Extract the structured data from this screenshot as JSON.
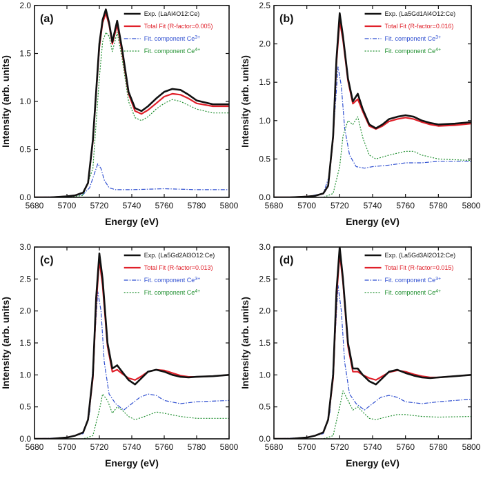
{
  "colors": {
    "experiment": "#111111",
    "total_fit": "#e0202a",
    "ce3": "#2f4fd0",
    "ce4": "#1f8f2f"
  },
  "chart_data": [
    {
      "type": "line",
      "panel_label": "(a)",
      "xlabel": "Energy (eV)",
      "ylabel": "Intensity (arb. units)",
      "xlim": [
        5680,
        5800
      ],
      "ylim": [
        0.0,
        2.0
      ],
      "xticks": [
        5680,
        5700,
        5720,
        5740,
        5760,
        5780,
        5800
      ],
      "yticks": [
        0.0,
        0.5,
        1.0,
        1.5,
        2.0
      ],
      "legend": [
        "Exp. (LaAl4O12:Ce)",
        "Total Fit (R-factor=0.005)",
        "Fit. component Ce3+",
        "Fit. component Ce4+"
      ],
      "series": [
        {
          "name": "Exp.",
          "style": "exp",
          "x": [
            5680,
            5690,
            5700,
            5705,
            5710,
            5713,
            5716,
            5718,
            5720,
            5722,
            5724,
            5726,
            5728,
            5731,
            5734,
            5738,
            5742,
            5746,
            5750,
            5755,
            5760,
            5765,
            5770,
            5775,
            5780,
            5790,
            5800
          ],
          "y": [
            0,
            0,
            0.01,
            0.02,
            0.05,
            0.15,
            0.6,
            1.1,
            1.6,
            1.85,
            1.96,
            1.82,
            1.62,
            1.84,
            1.55,
            1.1,
            0.93,
            0.9,
            0.95,
            1.03,
            1.1,
            1.13,
            1.12,
            1.07,
            1.01,
            0.97,
            0.97
          ]
        },
        {
          "name": "Total Fit",
          "style": "fit",
          "x": [
            5680,
            5690,
            5700,
            5705,
            5710,
            5713,
            5716,
            5718,
            5720,
            5722,
            5724,
            5726,
            5728,
            5731,
            5734,
            5738,
            5742,
            5746,
            5750,
            5755,
            5760,
            5765,
            5770,
            5775,
            5780,
            5790,
            5800
          ],
          "y": [
            0,
            0,
            0.01,
            0.02,
            0.05,
            0.15,
            0.58,
            1.08,
            1.57,
            1.82,
            1.92,
            1.8,
            1.6,
            1.8,
            1.52,
            1.08,
            0.9,
            0.87,
            0.91,
            0.98,
            1.05,
            1.08,
            1.07,
            1.03,
            0.98,
            0.95,
            0.95
          ]
        },
        {
          "name": "Ce3+",
          "style": "ce3",
          "x": [
            5680,
            5700,
            5710,
            5714,
            5717,
            5719,
            5721,
            5723,
            5726,
            5730,
            5740,
            5760,
            5780,
            5800
          ],
          "y": [
            0,
            0.01,
            0.03,
            0.1,
            0.25,
            0.35,
            0.3,
            0.18,
            0.1,
            0.08,
            0.08,
            0.09,
            0.08,
            0.08
          ]
        },
        {
          "name": "Ce4+",
          "style": "ce4",
          "x": [
            5680,
            5700,
            5710,
            5716,
            5720,
            5722,
            5724,
            5726,
            5728,
            5731,
            5734,
            5738,
            5742,
            5746,
            5750,
            5755,
            5760,
            5765,
            5770,
            5775,
            5780,
            5790,
            5800
          ],
          "y": [
            0,
            0,
            0.02,
            0.3,
            1.25,
            1.62,
            1.72,
            1.68,
            1.52,
            1.72,
            1.45,
            1.0,
            0.83,
            0.8,
            0.84,
            0.92,
            0.98,
            1.02,
            1.0,
            0.96,
            0.92,
            0.88,
            0.88
          ]
        }
      ]
    },
    {
      "type": "line",
      "panel_label": "(b)",
      "xlabel": "Energy (eV)",
      "ylabel": "Intensity (arb. units)",
      "xlim": [
        5680,
        5800
      ],
      "ylim": [
        0.0,
        2.5
      ],
      "xticks": [
        5680,
        5700,
        5720,
        5740,
        5760,
        5780,
        5800
      ],
      "yticks": [
        0.0,
        0.5,
        1.0,
        1.5,
        2.0,
        2.5
      ],
      "legend": [
        "Exp. (La5Gd1Al4O12:Ce)",
        "Total Fit (R-factor=0.016)",
        "Fit. component Ce3+",
        "Fit. component Ce4+"
      ],
      "series": [
        {
          "name": "Exp.",
          "style": "exp",
          "x": [
            5680,
            5690,
            5700,
            5705,
            5710,
            5713,
            5716,
            5718,
            5720,
            5722,
            5725,
            5728,
            5731,
            5734,
            5738,
            5742,
            5746,
            5750,
            5755,
            5760,
            5765,
            5770,
            5775,
            5780,
            5790,
            5800
          ],
          "y": [
            0,
            0,
            0.01,
            0.02,
            0.05,
            0.15,
            0.8,
            1.8,
            2.4,
            2.1,
            1.55,
            1.25,
            1.35,
            1.15,
            0.95,
            0.9,
            0.95,
            1.02,
            1.05,
            1.07,
            1.05,
            1.0,
            0.97,
            0.95,
            0.96,
            0.98
          ]
        },
        {
          "name": "Total Fit",
          "style": "fit",
          "x": [
            5680,
            5690,
            5700,
            5705,
            5710,
            5713,
            5716,
            5718,
            5720,
            5722,
            5725,
            5728,
            5731,
            5734,
            5738,
            5742,
            5746,
            5750,
            5755,
            5760,
            5765,
            5770,
            5775,
            5780,
            5790,
            5800
          ],
          "y": [
            0,
            0,
            0.01,
            0.02,
            0.05,
            0.15,
            0.78,
            1.75,
            2.3,
            2.05,
            1.52,
            1.22,
            1.28,
            1.12,
            0.93,
            0.89,
            0.93,
            0.99,
            1.02,
            1.04,
            1.02,
            0.98,
            0.95,
            0.93,
            0.94,
            0.96
          ]
        },
        {
          "name": "Ce3+",
          "style": "ce3",
          "x": [
            5680,
            5700,
            5710,
            5714,
            5717,
            5719,
            5721,
            5723,
            5726,
            5730,
            5735,
            5740,
            5750,
            5760,
            5770,
            5780,
            5800
          ],
          "y": [
            0,
            0.01,
            0.05,
            0.3,
            1.1,
            1.7,
            1.45,
            0.9,
            0.55,
            0.4,
            0.38,
            0.4,
            0.42,
            0.45,
            0.45,
            0.47,
            0.47
          ]
        },
        {
          "name": "Ce4+",
          "style": "ce4",
          "x": [
            5680,
            5710,
            5716,
            5720,
            5722,
            5725,
            5728,
            5731,
            5734,
            5738,
            5742,
            5750,
            5760,
            5765,
            5770,
            5780,
            5800
          ],
          "y": [
            0,
            0,
            0.05,
            0.4,
            0.8,
            1.0,
            0.95,
            1.05,
            0.78,
            0.55,
            0.5,
            0.55,
            0.6,
            0.6,
            0.55,
            0.5,
            0.48
          ]
        }
      ]
    },
    {
      "type": "line",
      "panel_label": "(c)",
      "xlabel": "Energy (eV)",
      "ylabel": "Intensity (arb. units)",
      "xlim": [
        5680,
        5800
      ],
      "ylim": [
        0.0,
        3.0
      ],
      "xticks": [
        5680,
        5700,
        5720,
        5740,
        5760,
        5780,
        5800
      ],
      "yticks": [
        0.0,
        0.5,
        1.0,
        1.5,
        2.0,
        2.5,
        3.0
      ],
      "legend": [
        "Exp. (La5Gd2Al3O12:Ce)",
        "Total Fit (R-factor=0.013)",
        "Fit. component Ce3+",
        "Fit. component Ce4+"
      ],
      "series": [
        {
          "name": "Exp.",
          "style": "exp",
          "x": [
            5680,
            5690,
            5700,
            5705,
            5710,
            5713,
            5716,
            5718,
            5720,
            5722,
            5725,
            5728,
            5731,
            5734,
            5738,
            5742,
            5746,
            5750,
            5755,
            5760,
            5765,
            5770,
            5775,
            5780,
            5790,
            5800
          ],
          "y": [
            0,
            0,
            0.02,
            0.05,
            0.1,
            0.3,
            1.0,
            2.2,
            2.9,
            2.5,
            1.5,
            1.1,
            1.15,
            1.05,
            0.92,
            0.85,
            0.95,
            1.05,
            1.08,
            1.05,
            1.0,
            0.97,
            0.96,
            0.97,
            0.98,
            1.0
          ]
        },
        {
          "name": "Total Fit",
          "style": "fit",
          "x": [
            5680,
            5690,
            5700,
            5705,
            5710,
            5713,
            5716,
            5718,
            5720,
            5722,
            5725,
            5728,
            5731,
            5734,
            5738,
            5742,
            5746,
            5750,
            5755,
            5760,
            5765,
            5770,
            5775,
            5780,
            5790,
            5800
          ],
          "y": [
            0,
            0,
            0.02,
            0.05,
            0.1,
            0.3,
            0.95,
            2.1,
            2.8,
            2.4,
            1.45,
            1.05,
            1.08,
            1.02,
            0.95,
            0.92,
            0.98,
            1.05,
            1.08,
            1.07,
            1.03,
            0.99,
            0.97,
            0.97,
            0.98,
            1.0
          ]
        },
        {
          "name": "Ce3+",
          "style": "ce3",
          "x": [
            5680,
            5700,
            5710,
            5714,
            5717,
            5719,
            5721,
            5723,
            5726,
            5730,
            5735,
            5740,
            5745,
            5750,
            5755,
            5760,
            5770,
            5780,
            5800
          ],
          "y": [
            0,
            0.02,
            0.08,
            0.4,
            1.5,
            2.3,
            2.0,
            1.2,
            0.7,
            0.55,
            0.45,
            0.55,
            0.65,
            0.7,
            0.68,
            0.6,
            0.55,
            0.58,
            0.6
          ]
        },
        {
          "name": "Ce4+",
          "style": "ce4",
          "x": [
            5680,
            5710,
            5716,
            5720,
            5722,
            5725,
            5728,
            5731,
            5734,
            5738,
            5742,
            5748,
            5755,
            5760,
            5770,
            5780,
            5800
          ],
          "y": [
            0,
            0,
            0.05,
            0.45,
            0.7,
            0.6,
            0.4,
            0.5,
            0.45,
            0.35,
            0.3,
            0.35,
            0.42,
            0.4,
            0.35,
            0.32,
            0.32
          ]
        }
      ]
    },
    {
      "type": "line",
      "panel_label": "(d)",
      "xlabel": "Energy (eV)",
      "ylabel": "Intensity (arb. units)",
      "xlim": [
        5680,
        5800
      ],
      "ylim": [
        0.0,
        3.0
      ],
      "xticks": [
        5680,
        5700,
        5720,
        5740,
        5760,
        5780,
        5800
      ],
      "yticks": [
        0.0,
        0.5,
        1.0,
        1.5,
        2.0,
        2.5,
        3.0
      ],
      "legend": [
        "Exp. (La5Gd3Al2O12:Ce)",
        "Total Fit (R-factor=0.015)",
        "Fit. component Ce3+",
        "Fit. component Ce4+"
      ],
      "series": [
        {
          "name": "Exp.",
          "style": "exp",
          "x": [
            5680,
            5690,
            5700,
            5705,
            5710,
            5713,
            5716,
            5718,
            5720,
            5722,
            5725,
            5728,
            5731,
            5734,
            5738,
            5742,
            5746,
            5750,
            5755,
            5760,
            5765,
            5770,
            5775,
            5780,
            5790,
            5800
          ],
          "y": [
            0,
            0,
            0.02,
            0.05,
            0.1,
            0.3,
            1.0,
            2.3,
            3.0,
            2.5,
            1.5,
            1.1,
            1.1,
            1.0,
            0.9,
            0.85,
            0.95,
            1.05,
            1.08,
            1.03,
            0.99,
            0.96,
            0.95,
            0.96,
            0.98,
            1.0
          ]
        },
        {
          "name": "Total Fit",
          "style": "fit",
          "x": [
            5680,
            5690,
            5700,
            5705,
            5710,
            5713,
            5716,
            5718,
            5720,
            5722,
            5725,
            5728,
            5731,
            5734,
            5738,
            5742,
            5746,
            5750,
            5755,
            5760,
            5765,
            5770,
            5775,
            5780,
            5790,
            5800
          ],
          "y": [
            0,
            0,
            0.02,
            0.05,
            0.1,
            0.3,
            0.95,
            2.2,
            2.9,
            2.45,
            1.45,
            1.05,
            1.05,
            1.0,
            0.95,
            0.92,
            0.98,
            1.04,
            1.07,
            1.05,
            1.01,
            0.98,
            0.96,
            0.96,
            0.98,
            1.0
          ]
        },
        {
          "name": "Ce3+",
          "style": "ce3",
          "x": [
            5680,
            5700,
            5710,
            5714,
            5717,
            5719,
            5721,
            5723,
            5726,
            5730,
            5735,
            5740,
            5745,
            5750,
            5755,
            5760,
            5770,
            5780,
            5800
          ],
          "y": [
            0,
            0.02,
            0.08,
            0.4,
            1.5,
            2.4,
            2.0,
            1.2,
            0.7,
            0.55,
            0.45,
            0.55,
            0.65,
            0.68,
            0.65,
            0.58,
            0.55,
            0.58,
            0.62
          ]
        },
        {
          "name": "Ce4+",
          "style": "ce4",
          "x": [
            5680,
            5710,
            5716,
            5720,
            5722,
            5725,
            5728,
            5731,
            5734,
            5738,
            5742,
            5748,
            5755,
            5760,
            5770,
            5780,
            5800
          ],
          "y": [
            0,
            0,
            0.05,
            0.5,
            0.75,
            0.6,
            0.45,
            0.5,
            0.42,
            0.32,
            0.3,
            0.34,
            0.38,
            0.38,
            0.35,
            0.34,
            0.35
          ]
        }
      ]
    }
  ]
}
